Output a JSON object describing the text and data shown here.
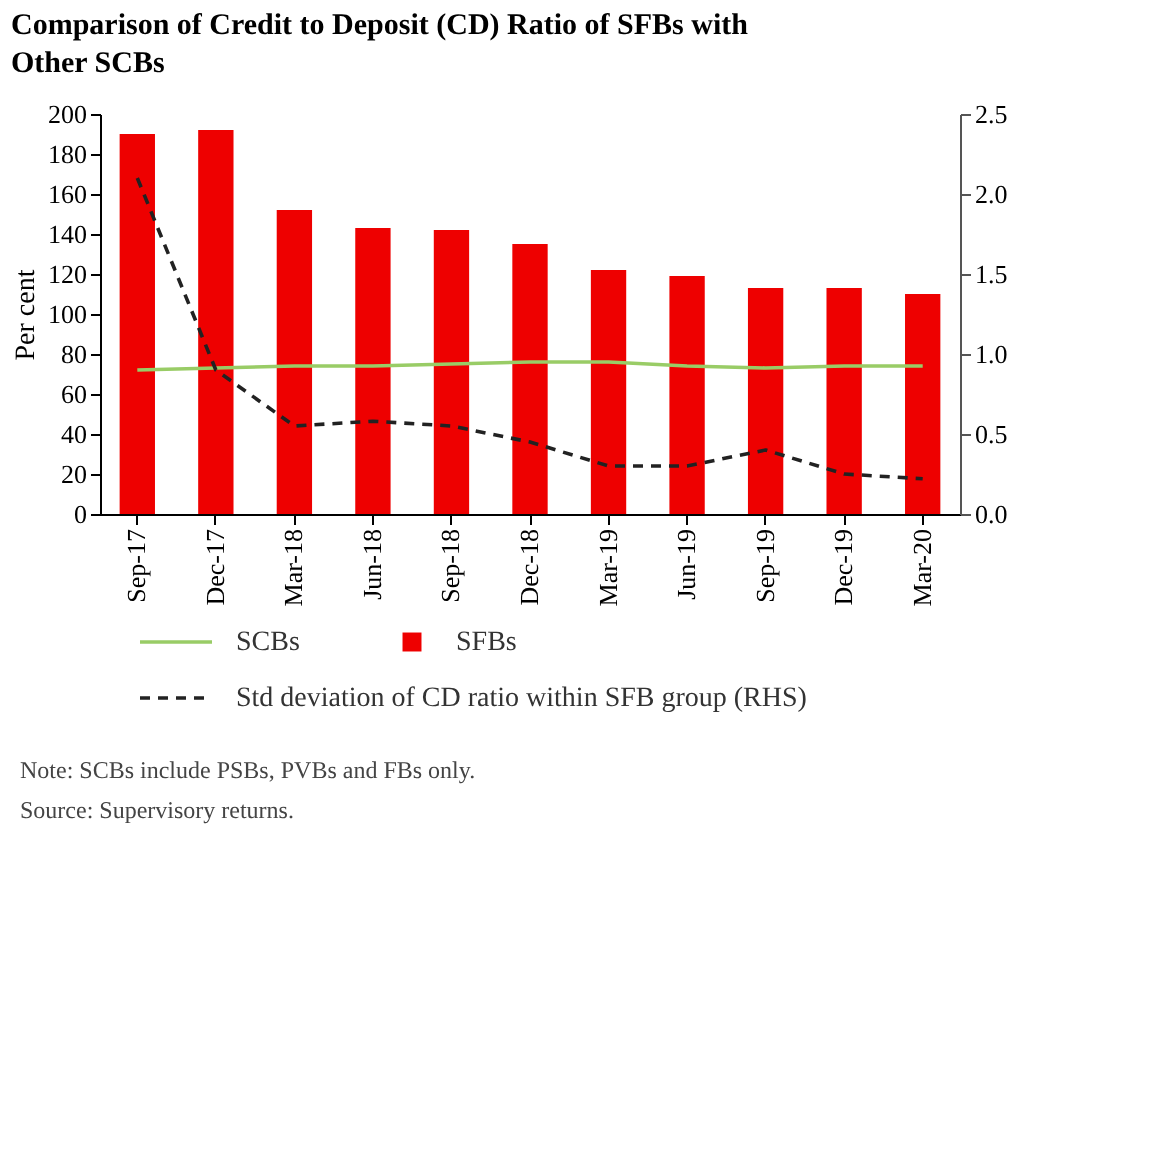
{
  "chart_data": {
    "type": "bar",
    "title": "Comparison of Credit to Deposit (CD) Ratio of SFBs with Other SCBs",
    "ylabel": "Per cent",
    "categories": [
      "Sep-17",
      "Dec-17",
      "Mar-18",
      "Jun-18",
      "Sep-18",
      "Dec-18",
      "Mar-19",
      "Jun-19",
      "Sep-19",
      "Dec-19",
      "Mar-20"
    ],
    "series": [
      {
        "name": "SFBs",
        "color": "#ee0000",
        "values": [
          190,
          192,
          152,
          143,
          142,
          135,
          122,
          119,
          113,
          113,
          110
        ]
      },
      {
        "name": "SCBs",
        "type": "line",
        "color": "#99cc66",
        "line_style": "solid",
        "values": [
          72,
          73,
          74,
          74,
          75,
          76,
          76,
          74,
          73,
          74,
          74
        ]
      },
      {
        "name": "Std deviation of CD ratio within SFB group (RHS)",
        "type": "line",
        "axis": "y2",
        "color": "#222222",
        "line_style": "dashed",
        "values": [
          2.1,
          0.9,
          0.55,
          0.58,
          0.55,
          0.45,
          0.3,
          0.3,
          0.4,
          0.25,
          0.22
        ]
      }
    ],
    "ylim": [
      0,
      200
    ],
    "yticks": [
      0,
      20,
      40,
      60,
      80,
      100,
      120,
      140,
      160,
      180,
      200
    ],
    "y2lim": [
      0,
      2.5
    ],
    "y2ticks": [
      {
        "value": 0,
        "label": "0.0"
      },
      {
        "value": 0.5,
        "label": "0.5"
      },
      {
        "value": 1,
        "label": "1.0"
      },
      {
        "value": 1.5,
        "label": "1.5"
      },
      {
        "value": 2,
        "label": "2.0"
      },
      {
        "value": 2.5,
        "label": "2.5"
      }
    ],
    "grid": false,
    "legend": "bottom",
    "marker": "none",
    "annotations": [
      "Note: SCBs include PSBs, PVBs and FBs only.",
      "Source: Supervisory returns."
    ]
  }
}
